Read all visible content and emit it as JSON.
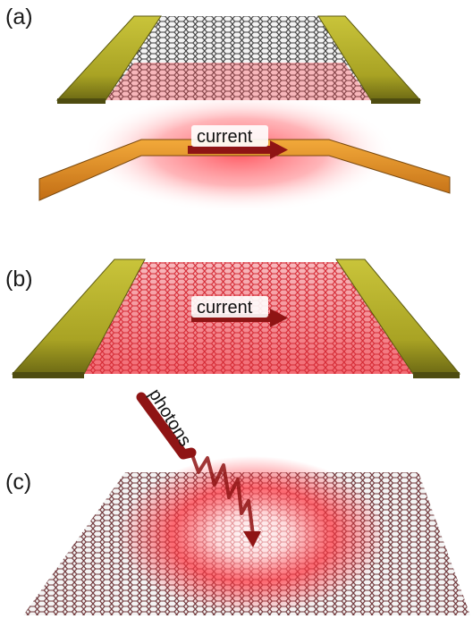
{
  "panels": [
    {
      "letter": "(a)",
      "arrow_label": "current"
    },
    {
      "letter": "(b)",
      "arrow_label": "current"
    },
    {
      "letter": "(c)",
      "wave_label": "photons"
    }
  ],
  "colors": {
    "graphene_dark": "#4a4a4a",
    "graphene_red": "#e0303a",
    "electrode": "#b7b22c",
    "electrode_edge": "#5c5a12",
    "heater": "#e8942a",
    "glow": "#ff2a35",
    "arrow": "#8f1414"
  }
}
